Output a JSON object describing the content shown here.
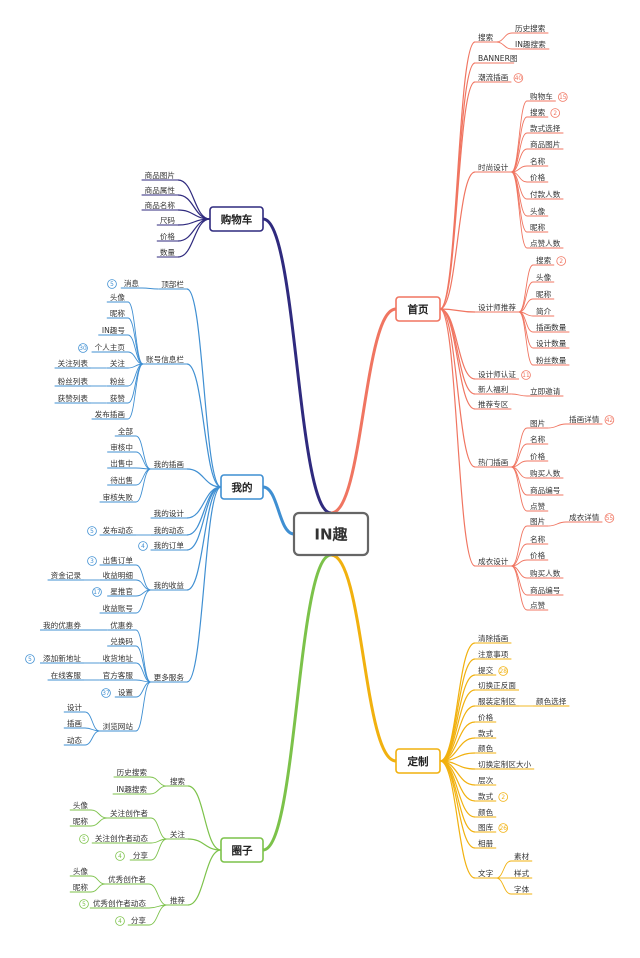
{
  "center": "IN趣",
  "colors": {
    "home": "#f07561",
    "custom": "#f1b10f",
    "circle": "#7cc24a",
    "mine": "#3f8fd2",
    "cart": "#2f2a7e"
  },
  "branches": {
    "home": {
      "label": "首页",
      "items": [
        {
          "label": "搜索",
          "children": [
            {
              "label": "历史搜索"
            },
            {
              "label": "IN趣搜索"
            }
          ]
        },
        {
          "label": "BANNER图"
        },
        {
          "label": "潮流插画",
          "badge": "40"
        },
        {
          "label": "时尚设计",
          "children": [
            {
              "label": "购物车",
              "badge": "15"
            },
            {
              "label": "搜索",
              "badge": "2"
            },
            {
              "label": "款式选择"
            },
            {
              "label": "商品图片"
            },
            {
              "label": "名称"
            },
            {
              "label": "价格"
            },
            {
              "label": "付款人数"
            },
            {
              "label": "头像"
            },
            {
              "label": "昵称"
            },
            {
              "label": "点赞人数"
            }
          ]
        },
        {
          "label": "设计师推荐",
          "children": [
            {
              "label": "搜索",
              "badge": "2"
            },
            {
              "label": "头像"
            },
            {
              "label": "昵称"
            },
            {
              "label": "简介"
            },
            {
              "label": "插画数量"
            },
            {
              "label": "设计数量"
            },
            {
              "label": "粉丝数量"
            }
          ]
        },
        {
          "label": "设计师认证",
          "badge": "11"
        },
        {
          "label": "新人福利",
          "children": [
            {
              "label": "立即邀请"
            }
          ]
        },
        {
          "label": "推荐专区"
        },
        {
          "label": "热门插画",
          "children": [
            {
              "label": "图片",
              "children": [
                {
                  "label": "插画详情",
                  "badge": "42"
                }
              ]
            },
            {
              "label": "名称"
            },
            {
              "label": "价格"
            },
            {
              "label": "购买人数"
            },
            {
              "label": "商品编号"
            },
            {
              "label": "点赞"
            }
          ]
        },
        {
          "label": "成衣设计",
          "children": [
            {
              "label": "图片",
              "children": [
                {
                  "label": "成衣详情",
                  "badge": "55"
                }
              ]
            },
            {
              "label": "名称"
            },
            {
              "label": "价格"
            },
            {
              "label": "购买人数"
            },
            {
              "label": "商品编号"
            },
            {
              "label": "点赞"
            }
          ]
        }
      ]
    },
    "custom": {
      "label": "定制",
      "items": [
        {
          "label": "清除插画"
        },
        {
          "label": "注意事项"
        },
        {
          "label": "提交",
          "badge": "28"
        },
        {
          "label": "切换正反面"
        },
        {
          "label": "服装定制区",
          "children": [
            {
              "label": "颜色选择"
            }
          ]
        },
        {
          "label": "价格"
        },
        {
          "label": "款式"
        },
        {
          "label": "颜色"
        },
        {
          "label": "切换定制区大小"
        },
        {
          "label": "层次"
        },
        {
          "label": "款式",
          "badge": "2"
        },
        {
          "label": "颜色"
        },
        {
          "label": "图库",
          "badge": "26"
        },
        {
          "label": "相册"
        },
        {
          "label": "文字",
          "children": [
            {
              "label": "素材"
            },
            {
              "label": "样式"
            },
            {
              "label": "字体"
            }
          ]
        }
      ]
    },
    "circle": {
      "label": "圈子",
      "items": [
        {
          "label": "搜索",
          "children": [
            {
              "label": "历史搜索"
            },
            {
              "label": "IN趣搜索"
            }
          ]
        },
        {
          "label": "关注",
          "children": [
            {
              "label": "关注创作者",
              "children": [
                {
                  "label": "头像"
                },
                {
                  "label": "昵称"
                }
              ]
            },
            {
              "label": "关注创作者动态",
              "badge": "5"
            },
            {
              "label": "分享",
              "badge": "4"
            }
          ]
        },
        {
          "label": "推荐",
          "children": [
            {
              "label": "优秀创作者",
              "children": [
                {
                  "label": "头像"
                },
                {
                  "label": "昵称"
                }
              ]
            },
            {
              "label": "优秀创作者动态",
              "badge": "5"
            },
            {
              "label": "分享",
              "badge": "4"
            }
          ]
        }
      ]
    },
    "mine": {
      "label": "我的",
      "items": [
        {
          "label": "顶部栏",
          "children": [
            {
              "label": "消息",
              "badge": "5"
            }
          ]
        },
        {
          "label": "账号信息栏",
          "children": [
            {
              "label": "头像"
            },
            {
              "label": "昵称"
            },
            {
              "label": "IN趣号"
            },
            {
              "label": "个人主页",
              "badge": "30"
            },
            {
              "label": "关注",
              "children": [
                {
                  "label": "关注列表"
                }
              ]
            },
            {
              "label": "粉丝",
              "children": [
                {
                  "label": "粉丝列表"
                }
              ]
            },
            {
              "label": "获赞",
              "children": [
                {
                  "label": "获赞列表"
                }
              ]
            },
            {
              "label": "发布插画"
            }
          ]
        },
        {
          "label": "我的插画",
          "children": [
            {
              "label": "全部"
            },
            {
              "label": "审核中"
            },
            {
              "label": "出售中"
            },
            {
              "label": "待出售"
            },
            {
              "label": "审核失败"
            }
          ]
        },
        {
          "label": "我的设计"
        },
        {
          "label": "我的动态",
          "children": [
            {
              "label": "发布动态",
              "badge": "5"
            }
          ]
        },
        {
          "label": "我的订单",
          "badge": "4"
        },
        {
          "label": "我的收益",
          "children": [
            {
              "label": "出售订单",
              "badge": "3"
            },
            {
              "label": "收益明细",
              "children": [
                {
                  "label": "资金记录"
                }
              ]
            },
            {
              "label": "星推官",
              "badge": "17"
            },
            {
              "label": "收益账号"
            }
          ]
        },
        {
          "label": "更多服务",
          "children": [
            {
              "label": "优惠券",
              "children": [
                {
                  "label": "我的优惠券"
                }
              ]
            },
            {
              "label": "兑换码"
            },
            {
              "label": "收货地址",
              "children": [
                {
                  "label": "添加新地址",
                  "badge": "5"
                }
              ]
            },
            {
              "label": "官方客服",
              "children": [
                {
                  "label": "在线客服"
                }
              ]
            },
            {
              "label": "设置",
              "badge": "37"
            },
            {
              "label": "浏览网站",
              "children": [
                {
                  "label": "设计"
                },
                {
                  "label": "插画"
                },
                {
                  "label": "动态"
                }
              ]
            }
          ]
        }
      ]
    },
    "cart": {
      "label": "购物车",
      "items": [
        {
          "label": "商品图片"
        },
        {
          "label": "商品属性"
        },
        {
          "label": "商品名称"
        },
        {
          "label": "尺码"
        },
        {
          "label": "价格"
        },
        {
          "label": "数量"
        }
      ]
    }
  }
}
